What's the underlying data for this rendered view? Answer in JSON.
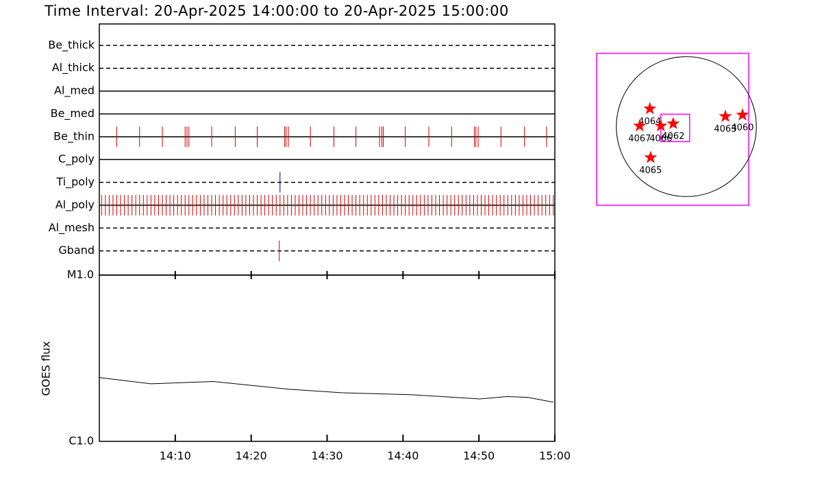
{
  "title": "Time Interval: 20-Apr-2025 14:00:00 to 20-Apr-2025 15:00:00",
  "chart_data": [
    {
      "type": "event",
      "rows": [
        {
          "name": "Be_thick",
          "style": "dashed",
          "times": []
        },
        {
          "name": "Al_thick",
          "style": "dashed",
          "times": []
        },
        {
          "name": "Al_med",
          "style": "solid",
          "times": []
        },
        {
          "name": "Be_med",
          "style": "solid",
          "times": []
        },
        {
          "name": "Be_thin",
          "style": "solid",
          "color": "#cc0000",
          "times": [
            2.3,
            5.3,
            8.3,
            11.3,
            11.55,
            11.8,
            14.8,
            17.9,
            20.8,
            24.4,
            24.6,
            24.9,
            27.8,
            30.9,
            33.8,
            36.9,
            37.2,
            37.4,
            40.3,
            43.4,
            46.4,
            49.4,
            49.6,
            49.9,
            52.9,
            56.0,
            58.9
          ]
        },
        {
          "name": "C_poly",
          "style": "solid",
          "times": []
        },
        {
          "name": "Ti_poly",
          "style": "dashed",
          "color": "#00008b",
          "times": [
            23.8
          ]
        },
        {
          "name": "Al_poly",
          "style": "solid",
          "color": "#cc0000",
          "times": [
            0.3,
            0.8,
            1.3,
            1.8,
            2.3,
            2.8,
            3.3,
            3.8,
            4.3,
            4.8,
            5.3,
            5.8,
            6.3,
            6.8,
            7.3,
            7.8,
            8.3,
            8.8,
            9.3,
            9.8,
            10.3,
            10.8,
            11.3,
            11.8,
            12.3,
            12.8,
            13.3,
            13.8,
            14.3,
            14.8,
            15.3,
            15.8,
            16.3,
            16.8,
            17.3,
            17.8,
            18.3,
            18.8,
            19.3,
            19.8,
            20.3,
            20.8,
            21.3,
            21.8,
            22.3,
            22.8,
            23.3,
            23.8,
            24.3,
            24.8,
            25.3,
            25.8,
            26.3,
            26.8,
            27.3,
            27.8,
            28.3,
            28.8,
            29.3,
            29.8,
            30.3,
            30.8,
            31.3,
            31.8,
            32.3,
            32.8,
            33.3,
            33.8,
            34.3,
            34.8,
            35.3,
            35.8,
            36.3,
            36.8,
            37.3,
            37.8,
            38.3,
            38.8,
            39.3,
            39.8,
            40.3,
            40.8,
            41.3,
            41.8,
            42.3,
            42.8,
            43.3,
            43.8,
            44.3,
            44.8,
            45.3,
            45.8,
            46.3,
            46.8,
            47.3,
            47.8,
            48.3,
            48.8,
            49.3,
            49.8,
            50.3,
            50.8,
            51.3,
            51.8,
            52.3,
            52.8,
            53.3,
            53.8,
            54.3,
            54.8,
            55.3,
            55.8,
            56.3,
            56.8,
            57.3,
            57.8,
            58.3,
            58.8,
            59.3,
            59.8
          ]
        },
        {
          "name": "Al_mesh",
          "style": "dashed",
          "times": []
        },
        {
          "name": "Gband",
          "style": "dashed",
          "color": "#cc0000",
          "times": [
            23.7
          ]
        }
      ]
    },
    {
      "type": "line",
      "ylabel": "GOES flux",
      "color": "#000000",
      "log_y": true,
      "x": [
        0,
        6.8,
        15,
        24.9,
        32,
        41,
        50.1,
        53.7,
        56.4,
        59.8
      ],
      "values": [
        2.42e-06,
        2.22e-06,
        2.29e-06,
        2.06e-06,
        1.96e-06,
        1.91e-06,
        1.8e-06,
        1.86e-06,
        1.84e-06,
        1.72e-06
      ],
      "xlim": [
        0,
        60
      ],
      "xticks": [
        {
          "value": 10,
          "label": "14:10"
        },
        {
          "value": 20,
          "label": "14:20"
        },
        {
          "value": 30,
          "label": "14:30"
        },
        {
          "value": 40,
          "label": "14:40"
        },
        {
          "value": 50,
          "label": "14:50"
        },
        {
          "value": 60,
          "label": "15:00"
        }
      ],
      "ylim": [
        1e-06,
        1e-05
      ],
      "yticks": [
        {
          "value": 1e-06,
          "label": "C1.0"
        },
        {
          "value": 1e-05,
          "label": "M1.0"
        }
      ]
    },
    {
      "type": "scatter",
      "color": "#ff0000",
      "frame_color": "#ff00ff",
      "xlim": [
        -1230,
        855
      ],
      "ylim": [
        -1080,
        1005
      ],
      "sun_radius": 960,
      "fov": {
        "x": [
          -350,
          45
        ],
        "y": [
          -205,
          170
        ]
      },
      "points": [
        {
          "label": "4064",
          "x": -500,
          "y": 245
        },
        {
          "label": "4067",
          "x": -640,
          "y": 10
        },
        {
          "label": "4066",
          "x": -350,
          "y": 10
        },
        {
          "label": "4062",
          "x": -180,
          "y": 40
        },
        {
          "label": "4063",
          "x": 535,
          "y": 140
        },
        {
          "label": "4060",
          "x": 770,
          "y": 160
        },
        {
          "label": "4065",
          "x": -490,
          "y": -425
        }
      ]
    }
  ]
}
